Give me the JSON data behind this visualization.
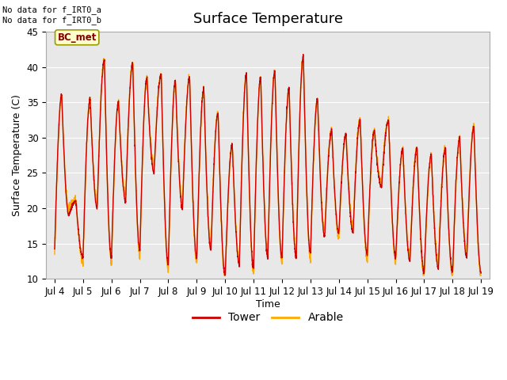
{
  "title": "Surface Temperature",
  "ylabel": "Surface Temperature (C)",
  "xlabel": "Time",
  "xlim_days": [
    3.7,
    19.3
  ],
  "ylim": [
    10,
    45
  ],
  "yticks": [
    10,
    15,
    20,
    25,
    30,
    35,
    40,
    45
  ],
  "xtick_labels": [
    "Jul 4",
    "Jul 5",
    "Jul 6",
    "Jul 7",
    "Jul 8",
    "Jul 9",
    "Jul 10",
    "Jul 11",
    "Jul 12",
    "Jul 13",
    "Jul 14",
    "Jul 15",
    "Jul 16",
    "Jul 17",
    "Jul 18",
    "Jul 19"
  ],
  "xtick_positions": [
    4,
    5,
    6,
    7,
    8,
    9,
    10,
    11,
    12,
    13,
    14,
    15,
    16,
    17,
    18,
    19
  ],
  "annotation_text": "No data for f_IRT0_a\nNo data for f_IRT0_b",
  "bc_met_label": "BC_met",
  "legend_tower_color": "#cc0000",
  "legend_arable_color": "#ffaa00",
  "tower_color": "#cc0000",
  "arable_color": "#ffaa00",
  "bg_color": "#e8e8e8",
  "grid_color": "#ffffff",
  "bc_met_bg": "#ffffcc",
  "bc_met_text_color": "#880000",
  "title_fontsize": 13,
  "label_fontsize": 9,
  "tick_fontsize": 8.5
}
